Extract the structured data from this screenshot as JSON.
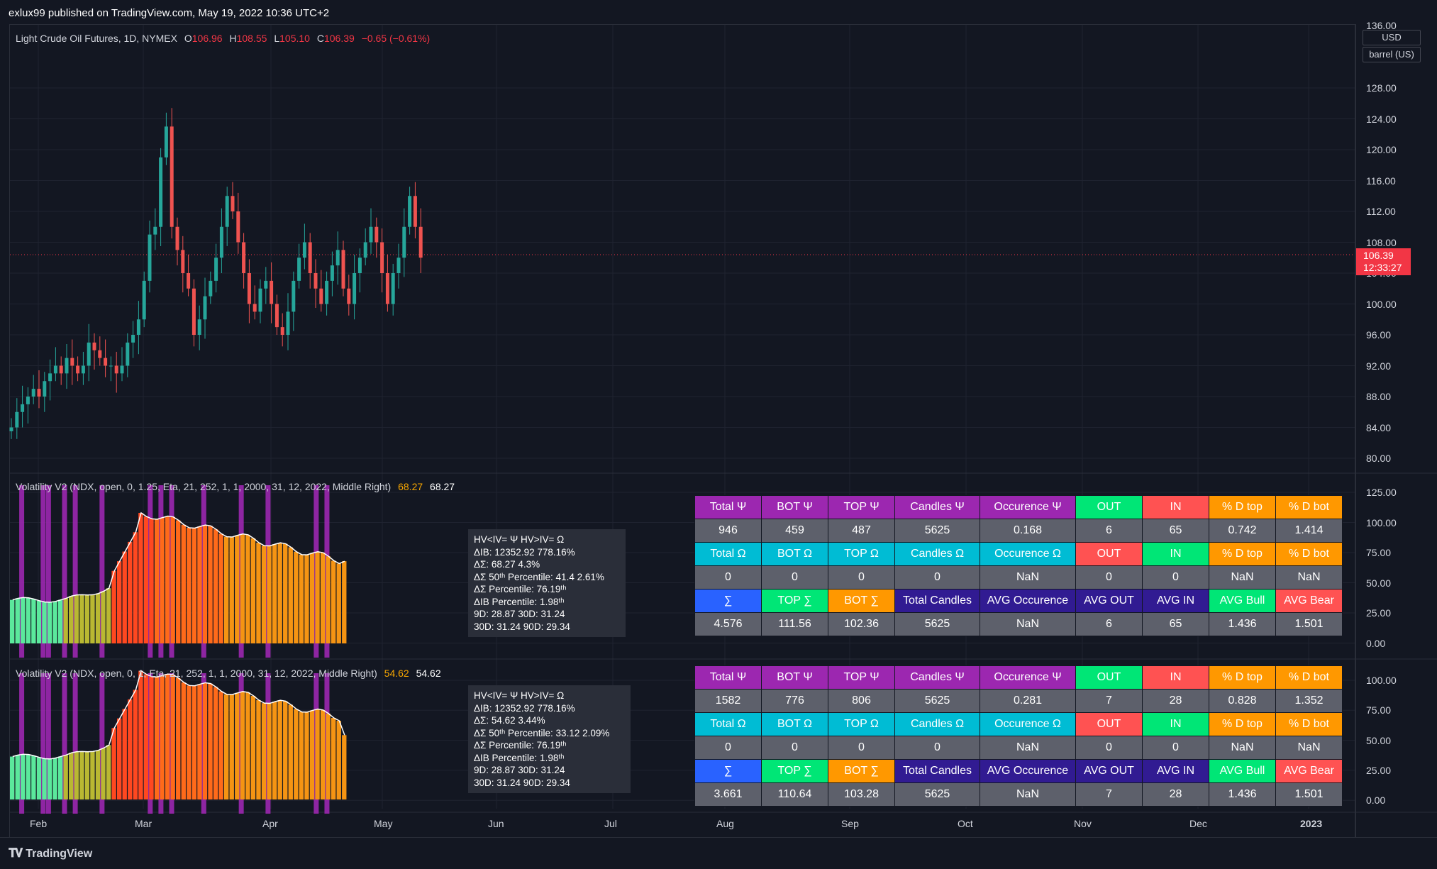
{
  "header": {
    "published": "exlux99 published on TradingView.com, May 19, 2022 10:36 UTC+2"
  },
  "main_legend": {
    "symbol": "Light Crude Oil Futures, 1D, NYMEX",
    "o_label": "O",
    "o_value": "106.96",
    "h_label": "H",
    "h_value": "108.55",
    "l_label": "L",
    "l_value": "105.10",
    "c_label": "C",
    "c_value": "106.39",
    "change": "−0.65 (−0.61%)"
  },
  "price_axis": {
    "currency": "USD",
    "unit": "barrel (US)",
    "top_partial": "136.00",
    "labels": [
      "128.00",
      "124.00",
      "120.00",
      "116.00",
      "112.00",
      "108.00",
      "104.00",
      "100.00",
      "96.00",
      "92.00",
      "88.00",
      "84.00",
      "80.00"
    ],
    "last_price": "106.39",
    "countdown": "12:33:27"
  },
  "indicator1": {
    "legend": "Volatility V2 (NDX, open, 0, 1.25, Eta, 21, 252, 1, 1, 2000, 31, 12, 2022, Middle Right)",
    "value_gold": "68.27",
    "value_white": "68.27",
    "axis": [
      "125.00",
      "100.00",
      "75.00",
      "50.00",
      "25.00",
      "0.00"
    ],
    "tooltip": {
      "line1": "HV<IV= Ψ  HV>IV= Ω",
      "line2": "ΔIB: 12352.92  778.16%",
      "line3": "ΔΣ: 68.27  4.3%",
      "line4": "ΔΣ 50ᵗʰ Percentile: 41.4  2.61%",
      "line5": "ΔΣ Percentile: 76.19ᵗʰ",
      "line6": "ΔIB Percentile: 1.98ᵗʰ",
      "line7": "9D: 28.87  30D: 31.24",
      "line8": "30D: 31.24  90D: 29.34"
    },
    "table": {
      "r1": [
        "Total Ψ",
        "BOT Ψ",
        "TOP Ψ",
        "Candles Ψ",
        "Occurence Ψ",
        "OUT",
        "IN",
        "% D top",
        "% D bot"
      ],
      "r2": [
        "946",
        "459",
        "487",
        "5625",
        "0.168",
        "6",
        "65",
        "0.742",
        "1.414"
      ],
      "r3": [
        "Total Ω",
        "BOT Ω",
        "TOP Ω",
        "Candles Ω",
        "Occurence Ω",
        "OUT",
        "IN",
        "% D top",
        "% D bot"
      ],
      "r4": [
        "0",
        "0",
        "0",
        "0",
        "NaN",
        "0",
        "0",
        "NaN",
        "NaN"
      ],
      "r5": [
        "∑",
        "TOP ∑",
        "BOT ∑",
        "Total Candles",
        "AVG Occurence",
        "AVG OUT",
        "AVG IN",
        "AVG Bull",
        "AVG Bear"
      ],
      "r6": [
        "4.576",
        "111.56",
        "102.36",
        "5625",
        "NaN",
        "6",
        "65",
        "1.436",
        "1.501"
      ]
    }
  },
  "indicator2": {
    "legend": "Volatility V2 (NDX, open, 0, 1, Eta, 21, 252, 1, 1, 2000, 31, 12, 2022, Middle Right)",
    "value_gold": "54.62",
    "value_white": "54.62",
    "axis": [
      "100.00",
      "75.00",
      "50.00",
      "25.00",
      "0.00"
    ],
    "tooltip": {
      "line1": "HV<IV= Ψ  HV>IV= Ω",
      "line2": "ΔIB: 12352.92  778.16%",
      "line3": "ΔΣ: 54.62  3.44%",
      "line4": "ΔΣ 50ᵗʰ Percentile: 33.12  2.09%",
      "line5": "ΔΣ Percentile: 76.19ᵗʰ",
      "line6": "ΔIB Percentile: 1.98ᵗʰ",
      "line7": "9D: 28.87  30D: 31.24",
      "line8": "30D: 31.24  90D: 29.34"
    },
    "table": {
      "r1": [
        "Total Ψ",
        "BOT Ψ",
        "TOP Ψ",
        "Candles Ψ",
        "Occurence Ψ",
        "OUT",
        "IN",
        "% D top",
        "% D bot"
      ],
      "r2": [
        "1582",
        "776",
        "806",
        "5625",
        "0.281",
        "7",
        "28",
        "0.828",
        "1.352"
      ],
      "r3": [
        "Total Ω",
        "BOT Ω",
        "TOP Ω",
        "Candles Ω",
        "Occurence Ω",
        "OUT",
        "IN",
        "% D top",
        "% D bot"
      ],
      "r4": [
        "0",
        "0",
        "0",
        "0",
        "NaN",
        "0",
        "0",
        "NaN",
        "NaN"
      ],
      "r5": [
        "∑",
        "TOP ∑",
        "BOT ∑",
        "Total Candles",
        "AVG Occurence",
        "AVG OUT",
        "AVG IN",
        "AVG Bull",
        "AVG Bear"
      ],
      "r6": [
        "3.661",
        "110.64",
        "103.28",
        "5625",
        "NaN",
        "7",
        "28",
        "1.436",
        "1.501"
      ]
    }
  },
  "time_axis": [
    "Feb",
    "Mar",
    "Apr",
    "May",
    "Jun",
    "Jul",
    "Aug",
    "Sep",
    "Oct",
    "Nov",
    "Dec",
    "2023"
  ],
  "footer": {
    "brand": "TradingView",
    "logo_icon": "tradingview-logo-icon"
  },
  "colors": {
    "background": "#131722",
    "bull": "#26a69a",
    "bear": "#ef5350",
    "psi": "#9c27b0",
    "omega": "#00bcd4",
    "out_green": "#00e676",
    "in_red": "#ff5252",
    "orange": "#ff9800",
    "sigma_blue": "#2962ff",
    "navy": "#311b92",
    "gray": "#5d606b"
  },
  "chart_data": {
    "type": "candlestick",
    "title": "Light Crude Oil Futures, 1D, NYMEX",
    "y_unit": "USD / barrel (US)",
    "ylim": [
      80,
      136
    ],
    "candles_approx_close": [
      84,
      86,
      87,
      88,
      89,
      88,
      90,
      91,
      92,
      91,
      93,
      92,
      91,
      92,
      95,
      94,
      93,
      92,
      92,
      91,
      92,
      95,
      96,
      98,
      103,
      109,
      110,
      119,
      123,
      110,
      107,
      104,
      102,
      96,
      98,
      101,
      103,
      106,
      110,
      114,
      112,
      108,
      104,
      100,
      99,
      102,
      103,
      100,
      97,
      96,
      99,
      103,
      106,
      108,
      104,
      102,
      100,
      103,
      105,
      107,
      102,
      100,
      104,
      106,
      108,
      110,
      108,
      104,
      100,
      104,
      106,
      110,
      114,
      110,
      106
    ],
    "last_close": 106.39
  }
}
